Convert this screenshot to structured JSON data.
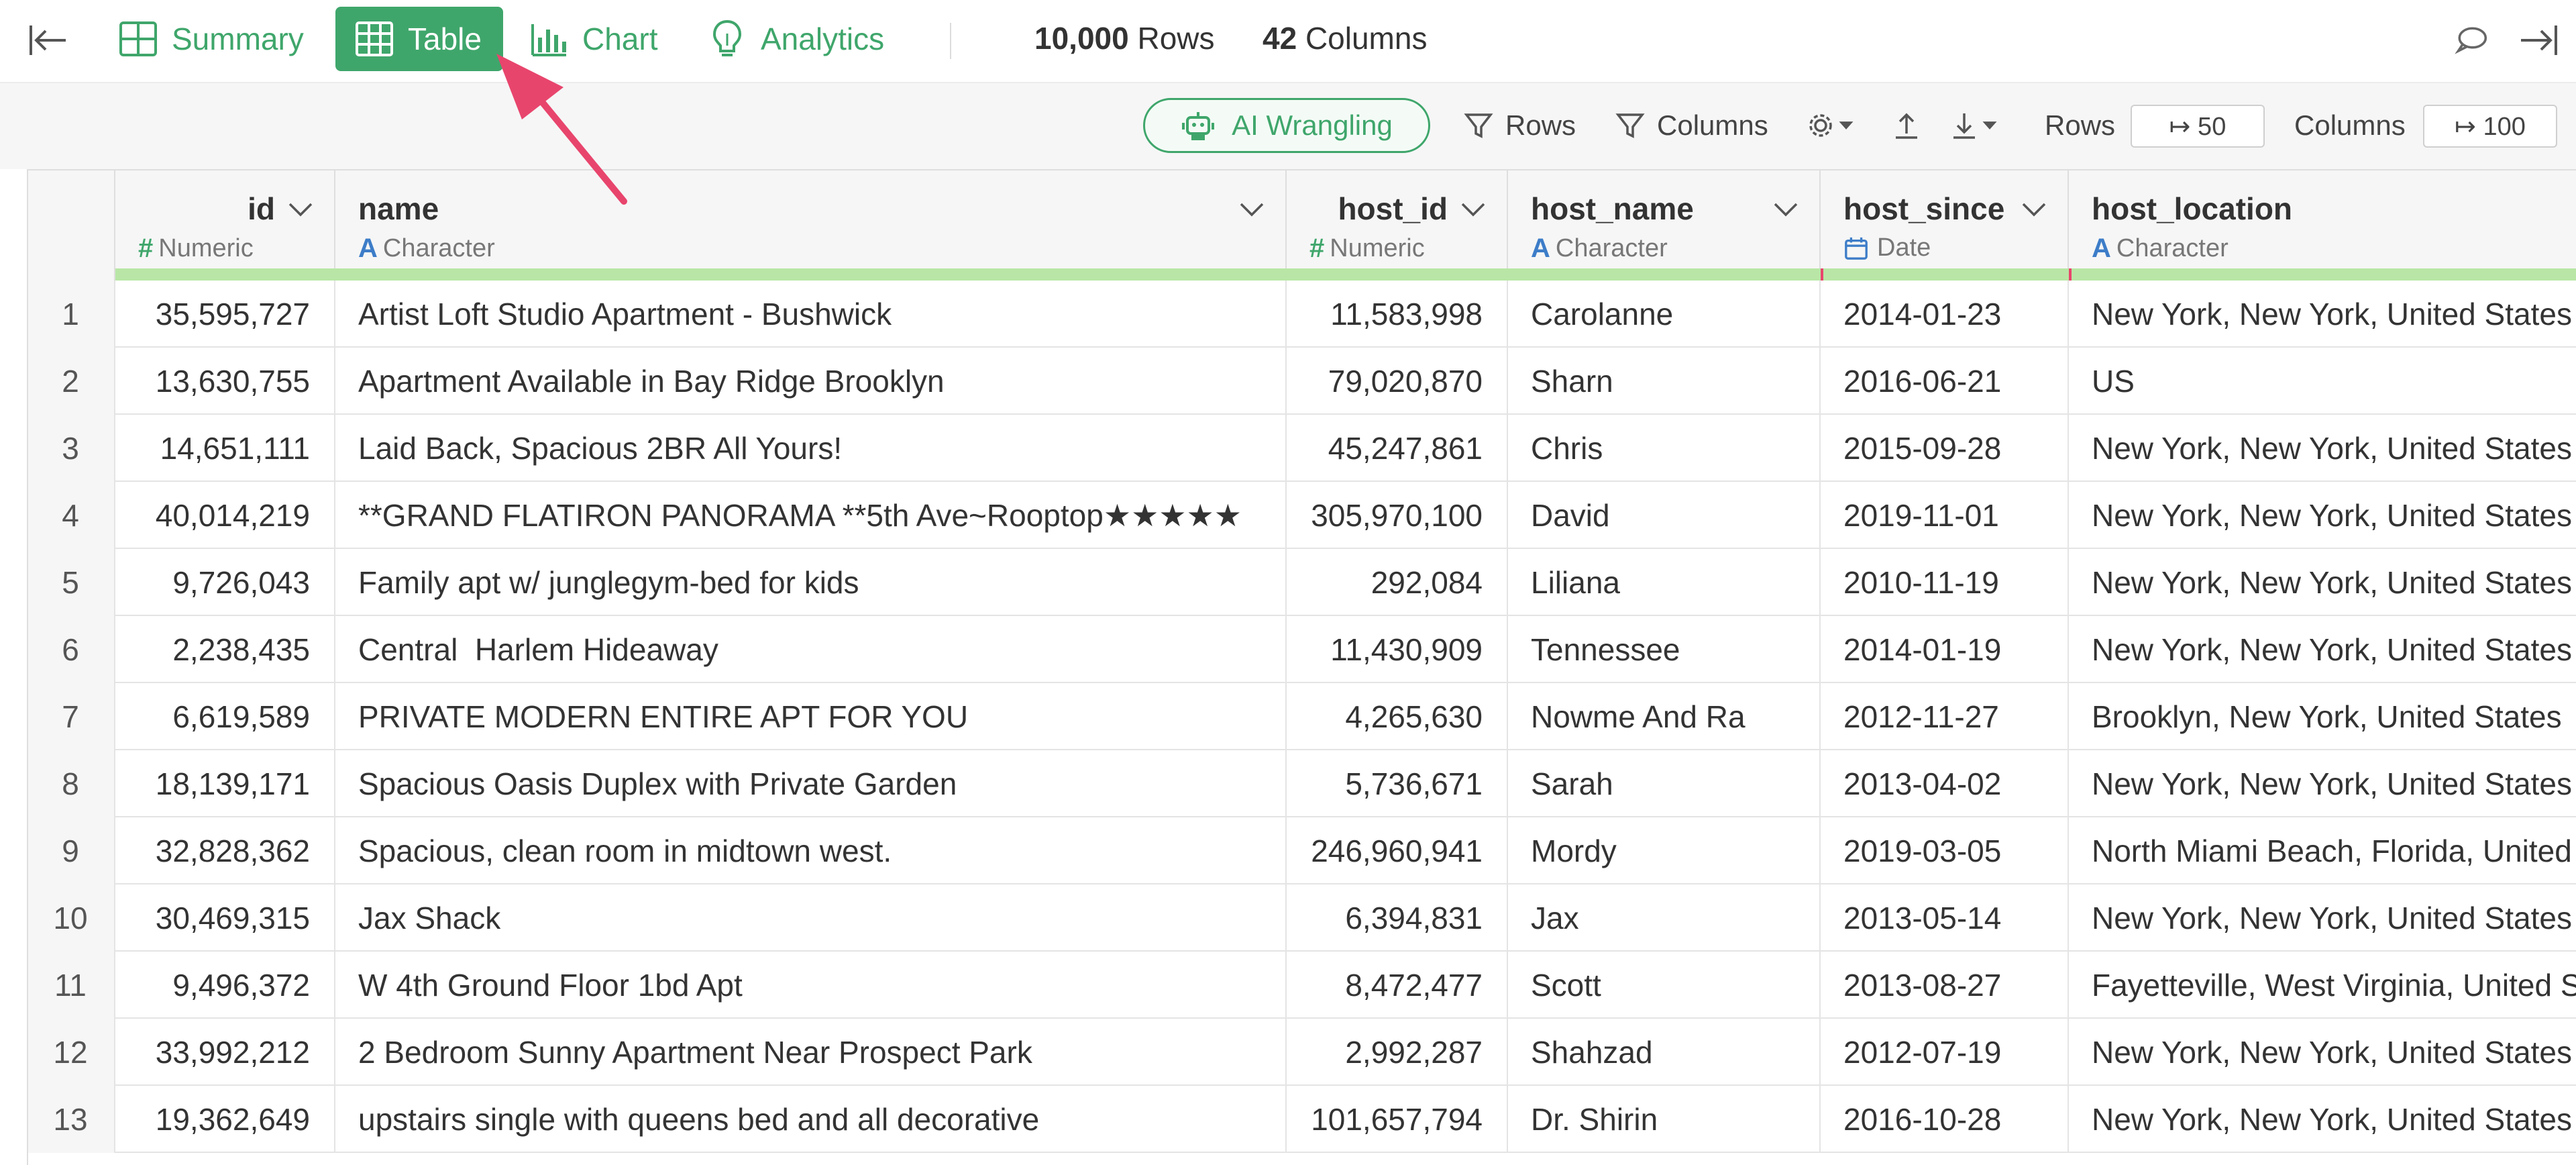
{
  "nav": {
    "tabs": [
      {
        "label": "Summary",
        "icon": "summary-grid-icon",
        "active": false
      },
      {
        "label": "Table",
        "icon": "table-icon",
        "active": true
      },
      {
        "label": "Chart",
        "icon": "bar-chart-icon",
        "active": false
      },
      {
        "label": "Analytics",
        "icon": "lightbulb-icon",
        "active": false
      }
    ],
    "rows_count": "10,000",
    "rows_label": "Rows",
    "cols_count": "42",
    "cols_label": "Columns"
  },
  "toolbar": {
    "ai_label": "AI Wrangling",
    "rows_filter": "Rows",
    "cols_filter": "Columns",
    "rows_label": "Rows",
    "rows_value": "↦ 50",
    "cols_label": "Columns",
    "cols_value": "↦ 100"
  },
  "columns": [
    {
      "name": "id",
      "type": "Numeric",
      "type_glyph": "#",
      "glyph_color": "#3fa66b"
    },
    {
      "name": "name",
      "type": "Character",
      "type_glyph": "A",
      "glyph_color": "#3d7dc8"
    },
    {
      "name": "host_id",
      "type": "Numeric",
      "type_glyph": "#",
      "glyph_color": "#3fa66b"
    },
    {
      "name": "host_name",
      "type": "Character",
      "type_glyph": "A",
      "glyph_color": "#3d7dc8"
    },
    {
      "name": "host_since",
      "type": "Date",
      "type_glyph": "calendar",
      "glyph_color": "#3d7dc8"
    },
    {
      "name": "host_location",
      "type": "Character",
      "type_glyph": "A",
      "glyph_color": "#3d7dc8"
    }
  ],
  "rows": [
    {
      "idx": "1",
      "id": "35,595,727",
      "name": "Artist Loft Studio Apartment - Bushwick",
      "host_id": "11,583,998",
      "host_name": "Carolanne",
      "host_since": "2014-01-23",
      "host_location": "New York, New York, United States"
    },
    {
      "idx": "2",
      "id": "13,630,755",
      "name": "Apartment Available in Bay Ridge Brooklyn",
      "host_id": "79,020,870",
      "host_name": "Sharn",
      "host_since": "2016-06-21",
      "host_location": "US"
    },
    {
      "idx": "3",
      "id": "14,651,111",
      "name": "Laid Back, Spacious 2BR All Yours!",
      "host_id": "45,247,861",
      "host_name": "Chris",
      "host_since": "2015-09-28",
      "host_location": "New York, New York, United States"
    },
    {
      "idx": "4",
      "id": "40,014,219",
      "name": "**GRAND FLATIRON PANORAMA **5th Ave~Rooptop★★★★★",
      "host_id": "305,970,100",
      "host_name": "David",
      "host_since": "2019-11-01",
      "host_location": "New York, New York, United States"
    },
    {
      "idx": "5",
      "id": "9,726,043",
      "name": "Family apt w/ junglegym-bed for kids",
      "host_id": "292,084",
      "host_name": "Liliana",
      "host_since": "2010-11-19",
      "host_location": "New York, New York, United States"
    },
    {
      "idx": "6",
      "id": "2,238,435",
      "name": "Central  Harlem Hideaway",
      "host_id": "11,430,909",
      "host_name": "Tennessee",
      "host_since": "2014-01-19",
      "host_location": "New York, New York, United States"
    },
    {
      "idx": "7",
      "id": "6,619,589",
      "name": "PRIVATE MODERN ENTIRE APT FOR YOU",
      "host_id": "4,265,630",
      "host_name": "Nowme And Ra",
      "host_since": "2012-11-27",
      "host_location": "Brooklyn, New York, United States"
    },
    {
      "idx": "8",
      "id": "18,139,171",
      "name": "Spacious Oasis Duplex with Private Garden",
      "host_id": "5,736,671",
      "host_name": "Sarah",
      "host_since": "2013-04-02",
      "host_location": "New York, New York, United States"
    },
    {
      "idx": "9",
      "id": "32,828,362",
      "name": "Spacious, clean room in midtown west.",
      "host_id": "246,960,941",
      "host_name": "Mordy",
      "host_since": "2019-03-05",
      "host_location": "North Miami Beach, Florida, United States"
    },
    {
      "idx": "10",
      "id": "30,469,315",
      "name": "Jax Shack",
      "host_id": "6,394,831",
      "host_name": "Jax",
      "host_since": "2013-05-14",
      "host_location": "New York, New York, United States"
    },
    {
      "idx": "11",
      "id": "9,496,372",
      "name": "W 4th Ground Floor 1bd Apt",
      "host_id": "8,472,477",
      "host_name": "Scott",
      "host_since": "2013-08-27",
      "host_location": "Fayetteville, West Virginia, United States"
    },
    {
      "idx": "12",
      "id": "33,992,212",
      "name": "2 Bedroom Sunny Apartment Near Prospect Park",
      "host_id": "2,992,287",
      "host_name": "Shahzad",
      "host_since": "2012-07-19",
      "host_location": "New York, New York, United States"
    },
    {
      "idx": "13",
      "id": "19,362,649",
      "name": "upstairs single with queens bed and all decorative",
      "host_id": "101,657,794",
      "host_name": "Dr. Shirin",
      "host_since": "2016-10-28",
      "host_location": "New York, New York, United States"
    }
  ],
  "colors": {
    "accent": "#3fa66b",
    "arrow": "#e8456d",
    "quality_bar": "#b9e6a6",
    "quality_missing": "#e8456d"
  }
}
